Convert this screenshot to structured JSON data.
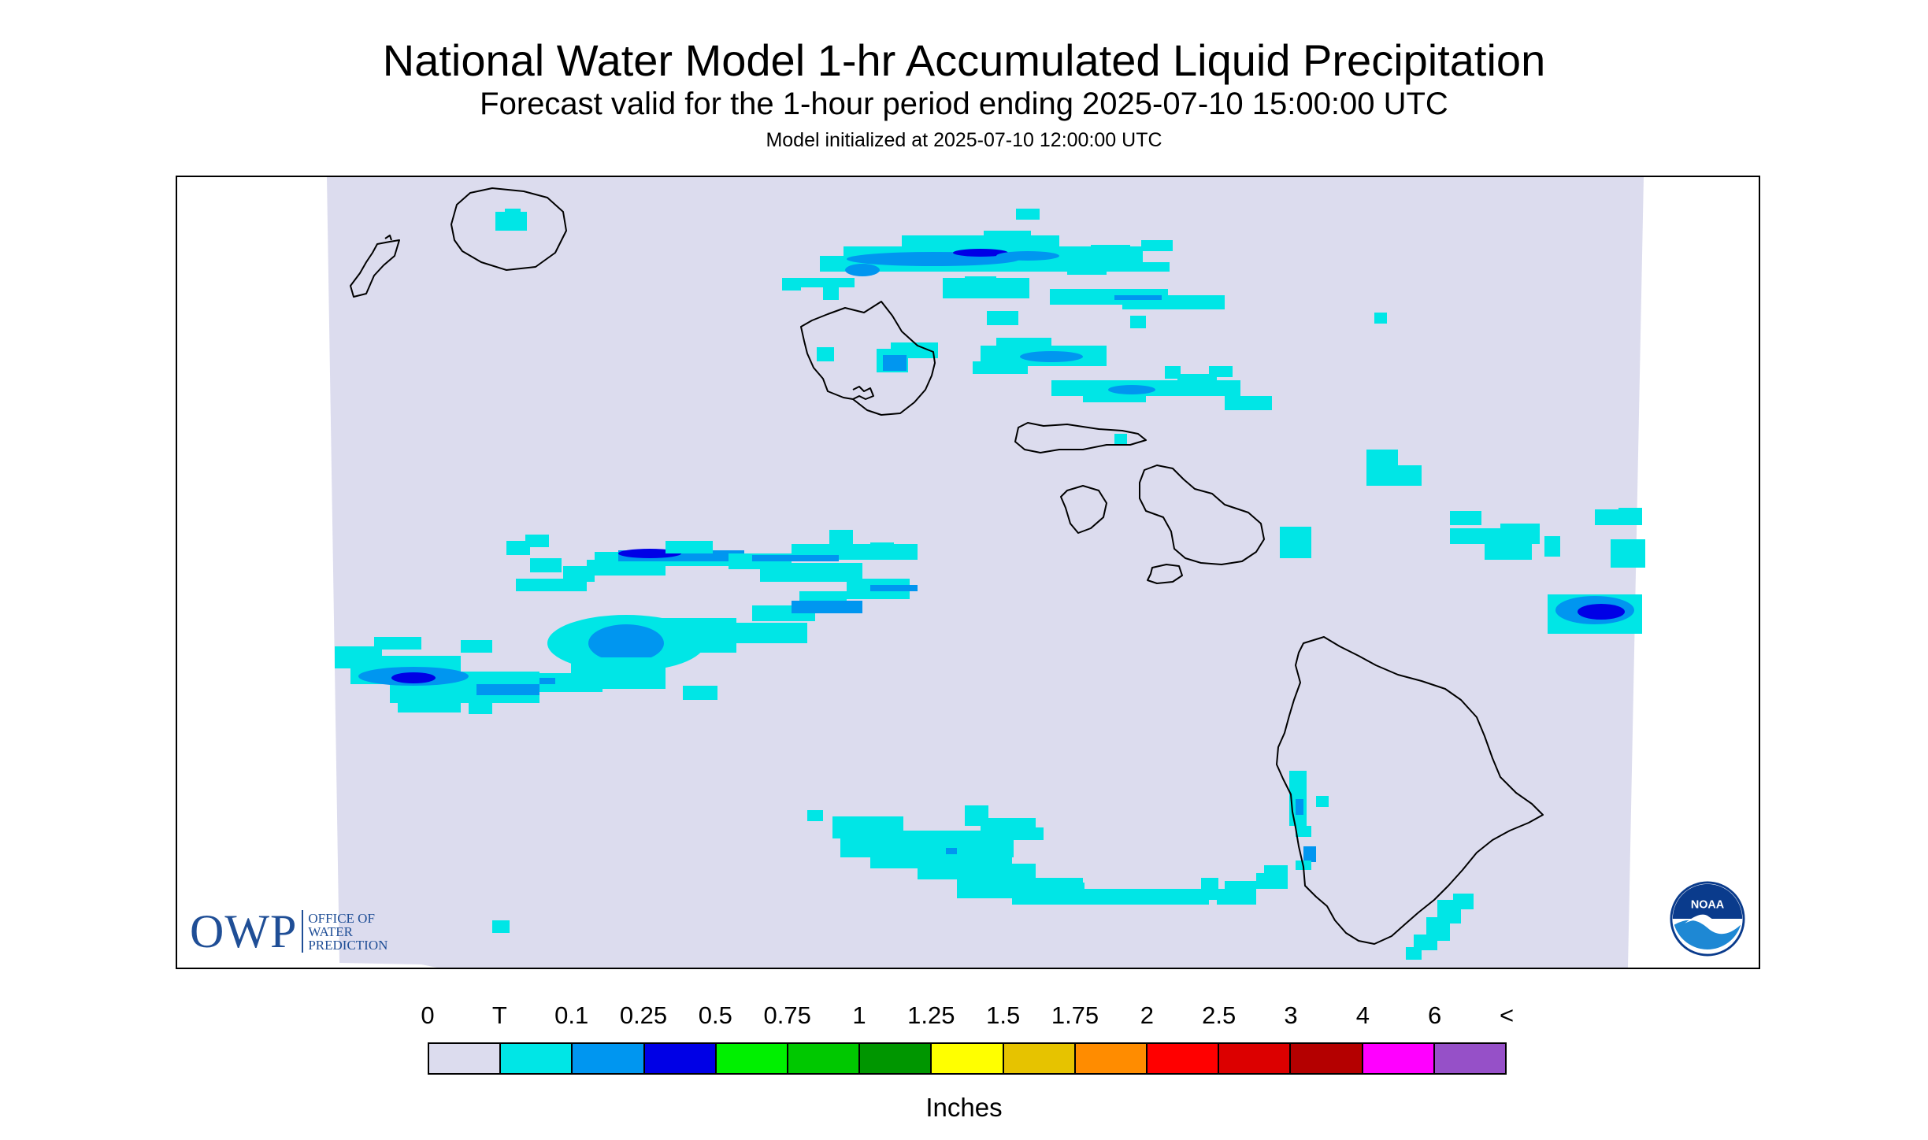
{
  "titles": {
    "main": "National Water Model 1-hr Accumulated Liquid Precipitation",
    "valid": "Forecast valid for the 1-hour period ending 2025-07-10 15:00:00 UTC",
    "init": "Model initialized at 2025-07-10 12:00:00 UTC"
  },
  "logos": {
    "owp_letters": "OWP",
    "owp_line1": "OFFICE OF",
    "owp_line2": "WATER",
    "owp_line3": "PREDICTION",
    "noaa": "NOAA"
  },
  "legend": {
    "unit": "Inches",
    "labels": [
      "0",
      "T",
      "0.1",
      "0.25",
      "0.5",
      "0.75",
      "1",
      "1.25",
      "1.5",
      "1.75",
      "2",
      "2.5",
      "3",
      "4",
      "6",
      "<"
    ],
    "colors": [
      "#dcdcee",
      "#00e6e6",
      "#0096f0",
      "#0000e6",
      "#00f000",
      "#00c800",
      "#009600",
      "#ffff00",
      "#e6c300",
      "#ff8c00",
      "#ff0000",
      "#dc0000",
      "#b40000",
      "#ff00ff",
      "#9650c8"
    ]
  },
  "map": {
    "background_color": "#dcdcee",
    "coastline_color": "#000000"
  }
}
